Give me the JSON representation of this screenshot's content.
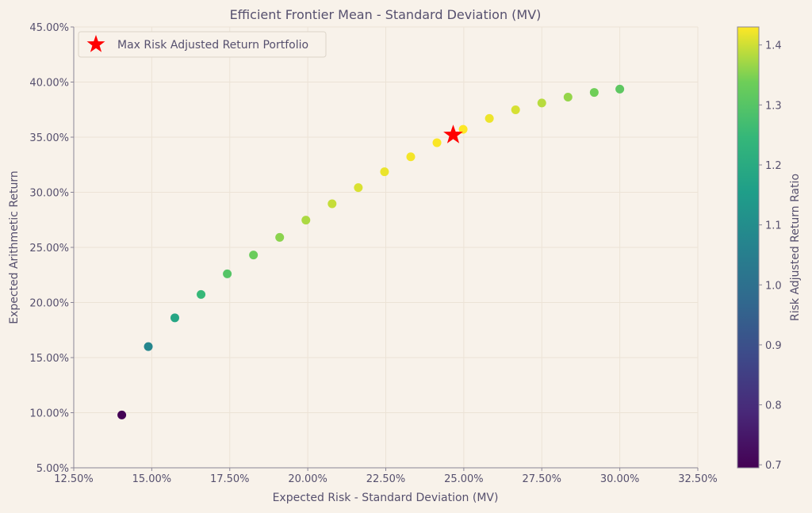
{
  "chart_data": {
    "type": "scatter",
    "title": "Efficient Frontier Mean - Standard Deviation (MV)",
    "xlabel": "Expected Risk - Standard Deviation (MV)",
    "ylabel": "Expected Arithmetic Return",
    "xlim": [
      0.125,
      0.325
    ],
    "ylim": [
      0.05,
      0.45
    ],
    "x_ticks": [
      0.125,
      0.15,
      0.175,
      0.2,
      0.225,
      0.25,
      0.275,
      0.3,
      0.325
    ],
    "x_tick_labels": [
      "12.50%",
      "15.00%",
      "17.50%",
      "20.00%",
      "22.50%",
      "25.00%",
      "27.50%",
      "30.00%",
      "32.50%"
    ],
    "y_ticks": [
      0.05,
      0.1,
      0.15,
      0.2,
      0.25,
      0.3,
      0.35,
      0.4,
      0.45
    ],
    "y_tick_labels": [
      "5.00%",
      "10.00%",
      "15.00%",
      "20.00%",
      "25.00%",
      "30.00%",
      "35.00%",
      "40.00%",
      "45.00%"
    ],
    "grid": true,
    "legend_position": "top-left",
    "colormap": "viridis",
    "colorbar": {
      "label": "Risk Adjusted Return Ratio",
      "range": [
        0.695,
        1.43
      ],
      "ticks": [
        0.7,
        0.8,
        0.9,
        1.0,
        1.1,
        1.2,
        1.3,
        1.4
      ],
      "tick_labels": [
        "0.7",
        "0.8",
        "0.9",
        "1.0",
        "1.1",
        "1.2",
        "1.3",
        "1.4"
      ]
    },
    "points": [
      {
        "x": 0.1404,
        "y": 0.0979,
        "c": 0.697
      },
      {
        "x": 0.1489,
        "y": 0.16,
        "c": 1.075
      },
      {
        "x": 0.1574,
        "y": 0.1861,
        "c": 1.183
      },
      {
        "x": 0.1658,
        "y": 0.2073,
        "c": 1.25
      },
      {
        "x": 0.1742,
        "y": 0.226,
        "c": 1.298
      },
      {
        "x": 0.1826,
        "y": 0.2431,
        "c": 1.331
      },
      {
        "x": 0.191,
        "y": 0.2591,
        "c": 1.357
      },
      {
        "x": 0.1994,
        "y": 0.2747,
        "c": 1.378
      },
      {
        "x": 0.2078,
        "y": 0.2896,
        "c": 1.394
      },
      {
        "x": 0.2162,
        "y": 0.3042,
        "c": 1.407
      },
      {
        "x": 0.2246,
        "y": 0.3186,
        "c": 1.418
      },
      {
        "x": 0.233,
        "y": 0.3322,
        "c": 1.424
      },
      {
        "x": 0.2414,
        "y": 0.345,
        "c": 1.428
      },
      {
        "x": 0.2498,
        "y": 0.3571,
        "c": 1.43
      },
      {
        "x": 0.2582,
        "y": 0.367,
        "c": 1.42
      },
      {
        "x": 0.2666,
        "y": 0.3748,
        "c": 1.405
      },
      {
        "x": 0.275,
        "y": 0.381,
        "c": 1.385
      },
      {
        "x": 0.2834,
        "y": 0.3863,
        "c": 1.363
      },
      {
        "x": 0.2918,
        "y": 0.3906,
        "c": 1.339
      },
      {
        "x": 0.3,
        "y": 0.3936,
        "c": 1.312
      }
    ],
    "highlight": {
      "label": "Max Risk Adjusted Return Portfolio",
      "x": 0.2466,
      "y": 0.352,
      "marker": "star",
      "color": "#ff0000"
    }
  },
  "colors": {
    "background": "#f8f2ea",
    "axis": "#8a8596",
    "grid": "#ece3d6",
    "text": "#56506e"
  }
}
